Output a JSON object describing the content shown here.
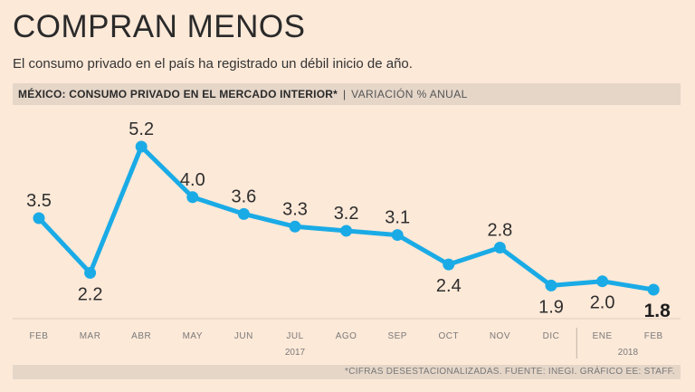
{
  "title": "COMPRAN MENOS",
  "subtitle": "El consumo privado en el país ha registrado un débil inicio de año.",
  "header": {
    "bold": "MÉXICO: CONSUMO PRIVADO EN EL MERCADO INTERIOR*",
    "separator": "|",
    "light": "VARIACIÓN % ANUAL"
  },
  "footer": "*CIFRAS DESESTACIONALIZADAS. FUENTE: INEGI. GRÁFICO EE: STAFF.",
  "colors": {
    "line": "#1aabe6",
    "background": "#fde9d8",
    "bar": "#e5d6c8"
  },
  "chart_data": {
    "type": "line",
    "title": "MÉXICO: CONSUMO PRIVADO EN EL MERCADO INTERIOR*",
    "ylabel": "VARIACIÓN % ANUAL",
    "xlabel": "",
    "categories": [
      "FEB",
      "MAR",
      "ABR",
      "MAY",
      "JUN",
      "JUL",
      "AGO",
      "SEP",
      "OCT",
      "NOV",
      "DIC",
      "ENE",
      "FEB"
    ],
    "values": [
      3.5,
      2.2,
      5.2,
      4.0,
      3.6,
      3.3,
      3.2,
      3.1,
      2.4,
      2.8,
      1.9,
      2.0,
      1.8
    ],
    "labels": [
      "3.5",
      "2.2",
      "5.2",
      "4.0",
      "3.6",
      "3.3",
      "3.2",
      "3.1",
      "2.4",
      "2.8",
      "1.9",
      "2.0",
      "1.8"
    ],
    "label_position": [
      "above",
      "below",
      "above",
      "above",
      "above",
      "above",
      "above",
      "above",
      "below",
      "above",
      "below",
      "below",
      "below"
    ],
    "highlight_last": true,
    "year_groups": [
      {
        "label": "2017",
        "from": 0,
        "to": 10
      },
      {
        "label": "2018",
        "from": 11,
        "to": 12
      }
    ],
    "ylim": [
      1.8,
      5.2
    ],
    "grid": false
  }
}
